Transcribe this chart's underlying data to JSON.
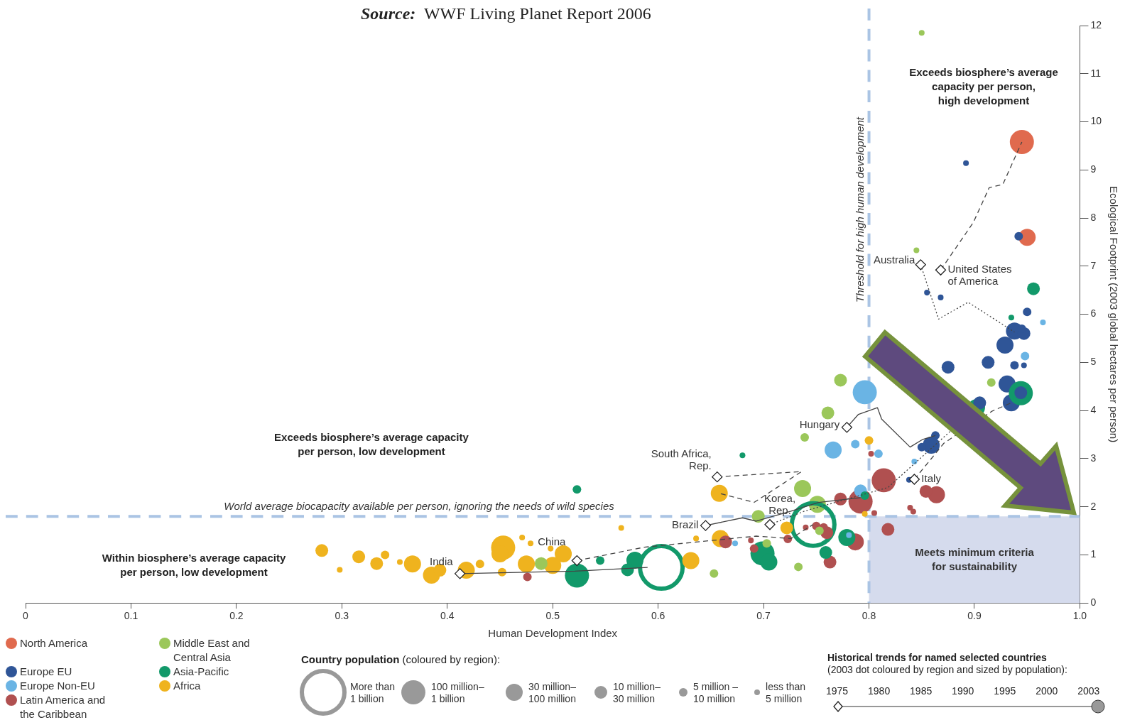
{
  "chart_data": {
    "type": "bubble",
    "xlabel": "Human Development Index",
    "ylabel": "Ecological Footprint (2003 global hectares per person)",
    "xlim": [
      0,
      1
    ],
    "xticks": [
      0,
      0.1,
      0.2,
      0.3,
      0.4,
      0.5,
      0.6,
      0.7,
      0.8,
      0.9,
      {
        "value": 1,
        "label": "1.0"
      }
    ],
    "ylim": [
      0,
      12
    ],
    "yticks": [
      0,
      1,
      2,
      3,
      4,
      5,
      6,
      7,
      8,
      9,
      10,
      11,
      12
    ],
    "legend": "bottom left",
    "series": [
      {
        "name": "North America",
        "color": "#e06a4e",
        "x": [
          0.945,
          0.95
        ],
        "values": [
          9.58,
          7.6
        ],
        "sizes": [
          0.32,
          0.16
        ]
      },
      {
        "name": "Europe EU",
        "color": "#2f5597",
        "x": [
          0.892,
          0.942,
          0.855,
          0.868,
          0.95,
          0.938,
          0.947,
          0.945,
          0.929,
          0.913,
          0.875,
          0.938,
          0.947,
          0.931,
          0.944,
          0.935,
          0.905,
          0.863,
          0.859,
          0.85,
          0.838
        ],
        "values": [
          9.14,
          7.62,
          6.45,
          6.35,
          6.05,
          5.65,
          5.6,
          5.7,
          5.36,
          5.0,
          4.9,
          4.94,
          4.94,
          4.55,
          4.37,
          4.16,
          4.16,
          3.48,
          3.28,
          3.24,
          2.56
        ],
        "sizes": [
          0.018,
          0.04,
          0.018,
          0.018,
          0.04,
          0.16,
          0.09,
          0.04,
          0.16,
          0.09,
          0.09,
          0.04,
          0.018,
          0.16,
          0.09,
          0.16,
          0.09,
          0.04,
          0.16,
          0.04,
          0.018
        ]
      },
      {
        "name": "Europe Non-EU",
        "color": "#6ab4e4",
        "x": [
          0.965,
          0.948,
          0.796,
          0.766,
          0.787,
          0.809,
          0.843,
          0.792,
          0.673,
          0.781
        ],
        "values": [
          5.83,
          5.13,
          4.38,
          3.18,
          3.3,
          3.1,
          2.94,
          2.33,
          1.24,
          1.41
        ],
        "sizes": [
          0.018,
          0.04,
          0.32,
          0.16,
          0.04,
          0.04,
          0.018,
          0.09,
          0.018,
          0.018
        ]
      },
      {
        "name": "Latin America and\nthe Caribbean",
        "color": "#b05050",
        "x": [
          0.814,
          0.792,
          0.773,
          0.854,
          0.864,
          0.839,
          0.842,
          0.802,
          0.805,
          0.818,
          0.787,
          0.763,
          0.76,
          0.75,
          0.757,
          0.664,
          0.688,
          0.691,
          0.723,
          0.74,
          0.476
        ],
        "values": [
          2.55,
          2.11,
          2.16,
          2.32,
          2.25,
          1.98,
          1.9,
          3.1,
          1.87,
          1.53,
          1.27,
          0.85,
          1.46,
          1.6,
          1.57,
          1.27,
          1.3,
          1.13,
          1.33,
          1.57,
          0.54
        ],
        "sizes": [
          0.32,
          0.32,
          0.09,
          0.09,
          0.16,
          0.018,
          0.018,
          0.018,
          0.018,
          0.09,
          0.16,
          0.09,
          0.09,
          0.04,
          0.04,
          0.09,
          0.018,
          0.04,
          0.04,
          0.018,
          0.04
        ]
      },
      {
        "name": "Middle East and\nCentral Asia",
        "color": "#9bc75a",
        "x": [
          0.85,
          0.845,
          0.773,
          0.761,
          0.739,
          0.737,
          0.751,
          0.695,
          0.753,
          0.703,
          0.733,
          0.653,
          0.916,
          0.489
        ],
        "values": [
          11.85,
          7.33,
          4.63,
          3.95,
          3.44,
          2.38,
          2.05,
          1.8,
          1.5,
          1.24,
          0.75,
          0.61,
          4.58,
          0.82
        ],
        "sizes": [
          0.018,
          0.018,
          0.09,
          0.09,
          0.04,
          0.16,
          0.16,
          0.09,
          0.04,
          0.04,
          0.04,
          0.04,
          0.04,
          0.09
        ]
      },
      {
        "name": "Asia-Pacific",
        "color": "#12996a",
        "x": [
          0.603,
          0.747,
          0.956,
          0.935,
          0.944,
          0.902,
          0.796,
          0.68,
          0.523,
          0.699,
          0.705,
          0.779,
          0.759,
          0.578,
          0.571,
          0.545,
          0.523
        ],
        "values": [
          0.74,
          1.63,
          6.53,
          5.93,
          4.36,
          4.06,
          2.23,
          3.07,
          2.36,
          1.03,
          0.85,
          1.36,
          1.05,
          0.89,
          0.69,
          0.88,
          0.57
        ],
        "sizes": [
          1,
          1,
          0.09,
          0.018,
          0.32,
          0.16,
          0.04,
          0.018,
          0.04,
          0.32,
          0.16,
          0.16,
          0.09,
          0.16,
          0.09,
          0.04,
          0.32
        ]
      },
      {
        "name": "Africa",
        "color": "#efb31e",
        "x": [
          0.658,
          0.8,
          0.796,
          0.722,
          0.659,
          0.631,
          0.636,
          0.565,
          0.281,
          0.298,
          0.316,
          0.333,
          0.341,
          0.355,
          0.367,
          0.385,
          0.393,
          0.418,
          0.431,
          0.453,
          0.45,
          0.471,
          0.479,
          0.475,
          0.452,
          0.498,
          0.51,
          0.5
        ],
        "values": [
          2.28,
          3.38,
          1.85,
          1.56,
          1.34,
          0.88,
          1.34,
          1.56,
          1.09,
          0.69,
          0.96,
          0.82,
          1.0,
          0.85,
          0.81,
          0.58,
          0.68,
          0.68,
          0.81,
          1.15,
          1.02,
          1.36,
          1.24,
          0.81,
          0.64,
          1.13,
          1.02,
          0.78
        ],
        "sizes": [
          0.16,
          0.04,
          0.018,
          0.09,
          0.16,
          0.16,
          0.018,
          0.018,
          0.09,
          0.018,
          0.09,
          0.09,
          0.04,
          0.018,
          0.16,
          0.16,
          0.09,
          0.16,
          0.04,
          0.32,
          0.16,
          0.018,
          0.018,
          0.16,
          0.04,
          0.018,
          0.16,
          0.16
        ]
      },
      {
        "type": "line",
        "color": "#444444",
        "line_style": "dashed",
        "marker": "none",
        "x": [
          0.868,
          0.899,
          0.914,
          0.927,
          0.945
        ],
        "values": [
          6.92,
          7.91,
          8.63,
          8.7,
          9.58
        ]
      },
      {
        "type": "line",
        "color": "#444444",
        "line_style": "dotted",
        "marker": "none",
        "x": [
          0.849,
          0.866,
          0.894,
          0.938
        ],
        "values": [
          7.03,
          5.9,
          6.25,
          5.63
        ]
      },
      {
        "type": "line",
        "color": "#444444",
        "line_style": "solid",
        "marker": "none",
        "x": [
          0.779,
          0.79,
          0.808,
          0.812,
          0.839,
          0.851,
          0.863
        ],
        "values": [
          3.65,
          3.92,
          4.06,
          3.82,
          3.24,
          3.4,
          3.48
        ]
      },
      {
        "type": "line",
        "color": "#444444",
        "line_style": "dashed",
        "marker": "none",
        "x": [
          0.843,
          0.858,
          0.871,
          0.917,
          0.935
        ],
        "values": [
          2.57,
          2.97,
          3.32,
          3.99,
          4.16
        ]
      },
      {
        "type": "line",
        "color": "#444444",
        "line_style": "dotted",
        "marker": "none",
        "x": [
          0.706,
          0.739,
          0.818,
          0.902
        ],
        "values": [
          1.63,
          1.91,
          2.4,
          4.06
        ]
      },
      {
        "type": "line",
        "color": "#444444",
        "line_style": "solid",
        "marker": "none",
        "x": [
          0.645,
          0.68,
          0.693,
          0.726,
          0.752,
          0.792
        ],
        "values": [
          1.61,
          1.77,
          1.7,
          1.91,
          2.09,
          2.19
        ]
      },
      {
        "type": "line",
        "color": "#444444",
        "line_style": "dashed",
        "marker": "none",
        "x": [
          0.656,
          0.736,
          0.691,
          0.658
        ],
        "values": [
          2.62,
          2.73,
          2.09,
          2.28
        ]
      },
      {
        "type": "line",
        "color": "#444444",
        "line_style": "dashed",
        "marker": "none",
        "x": [
          0.523,
          0.587,
          0.693,
          0.726,
          0.747
        ],
        "values": [
          0.88,
          1.16,
          1.39,
          1.34,
          1.63
        ]
      },
      {
        "type": "line",
        "color": "#444444",
        "line_style": "solid",
        "marker": "none",
        "x": [
          0.412,
          0.521,
          0.59
        ],
        "values": [
          0.61,
          0.66,
          0.74
        ]
      },
      {
        "type": "scatter",
        "color": "#ffffff",
        "marker": "diamond",
        "x": [
          0.412,
          0.523,
          0.645,
          0.706,
          0.656,
          0.779,
          0.843,
          0.849,
          0.868
        ],
        "values": [
          0.61,
          0.88,
          1.61,
          1.63,
          2.62,
          3.65,
          2.57,
          7.03,
          6.92
        ]
      }
    ],
    "size_legend": [
      {
        "value": 1,
        "label": "More than\n1 billion"
      },
      {
        "value": 0.32,
        "label": "100 million–\n1 billion"
      },
      {
        "value": 0.16,
        "label": "30 million–\n100 million"
      },
      {
        "value": 0.09,
        "label": "10 million–\n30 million"
      },
      {
        "value": 0.04,
        "label": "5 million –\n10 million"
      },
      {
        "value": 0.018,
        "label": "less than\n5 million"
      }
    ],
    "ref_lines": [
      {
        "axis": "x",
        "value": 0.8,
        "label": "Threshold for high human development",
        "color": "#aac4e4",
        "line_style": "dashed"
      },
      {
        "axis": "y",
        "value": 1.8,
        "label": "World average biocapacity available per person, ignoring the needs of wild species",
        "color": "#aac4e4",
        "line_style": "dashed"
      }
    ],
    "bands": [
      {
        "axis": "x",
        "from": 0.8,
        "to": 1,
        "label": "Meets minimum criteria\nfor sustainability",
        "color": "#d5dbed"
      }
    ],
    "annotations": [
      "Source:  WWF Living Planet Report 2006",
      "Country population (coloured by region):",
      "Historical trends for named selected countries\n(2003 dot coloured by region and sized by population):",
      "1975 1980 1985 1990 1995 2000 2003",
      "Exceeds biosphere’s average\ncapacity per person,\nhigh development",
      "Exceeds biosphere’s average capacity\nper person, low development",
      "Within biosphere’s average capacity\nper person, low development",
      {
        "text": "India",
        "x": 0.412,
        "y": 0.61
      },
      {
        "text": "China",
        "x": 0.523,
        "y": 0.88
      },
      {
        "text": "Brazil",
        "x": 0.645,
        "y": 1.61
      },
      {
        "text": "Korea,\nRep.",
        "x": 0.706,
        "y": 1.63
      },
      {
        "text": "South Africa,\nRep.",
        "x": 0.656,
        "y": 2.62
      },
      {
        "text": "Hungary",
        "x": 0.779,
        "y": 3.65
      },
      {
        "text": "Italy",
        "x": 0.843,
        "y": 2.57
      },
      {
        "text": "Australia",
        "x": 0.849,
        "y": 7.03
      },
      {
        "text": "United States\nof America",
        "x": 0.868,
        "y": 6.92
      }
    ]
  }
}
